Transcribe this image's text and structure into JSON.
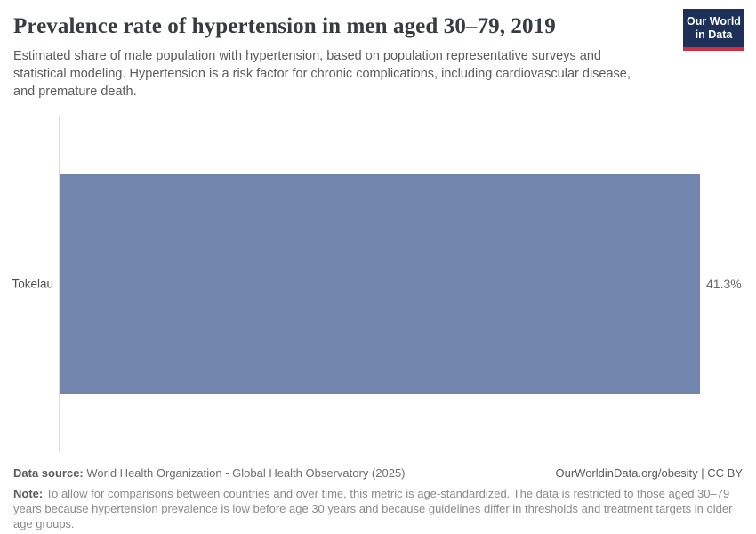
{
  "header": {
    "title": "Prevalence rate of hypertension in men aged 30–79, 2019",
    "subtitle": "Estimated share of male population with hypertension, based on population representative surveys and statistical modeling. Hypertension is a risk factor for chronic complications, including cardiovascular disease, and premature death.",
    "logo": {
      "line1": "Our World",
      "line2": "in Data"
    }
  },
  "chart_data": {
    "type": "bar",
    "orientation": "horizontal",
    "title": "Prevalence rate of hypertension in men aged 30–79, 2019",
    "categories": [
      "Tokelau"
    ],
    "values": [
      41.3
    ],
    "value_labels": [
      "41.3%"
    ],
    "xlabel": "",
    "ylabel": "",
    "xlim": [
      0,
      41.3
    ],
    "grid": false,
    "legend": false,
    "bar_color": "#7286ad",
    "axis_line_color": "#dedede"
  },
  "footer": {
    "data_source_label": "Data source:",
    "data_source": " World Health Organization - Global Health Observatory (2025)",
    "link": "OurWorldinData.org/obesity | CC BY",
    "note_label": "Note:",
    "note": " To allow for comparisons between countries and over time, this metric is age-standardized. The data is restricted to those aged 30–79 years because hypertension prevalence is low before age 30 years and because guidelines differ in thresholds and treatment targets in older age groups."
  },
  "colors": {
    "bar": "#7286ad",
    "logo_background": "#1d3158",
    "logo_accent_red": "#cf303e",
    "title_text": "#373c3f",
    "subtitle_text": "#5b5b5b",
    "note_text": "#8a8a8a"
  }
}
